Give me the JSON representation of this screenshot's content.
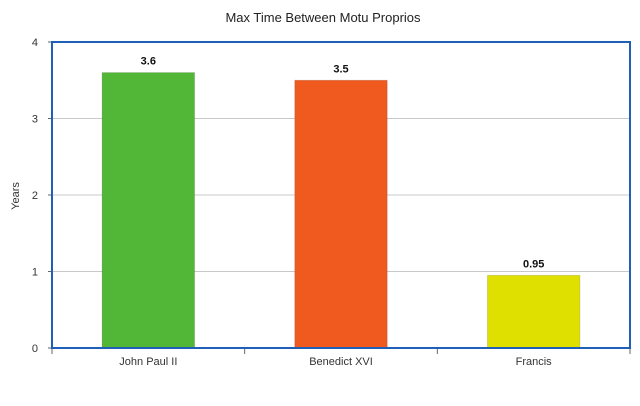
{
  "chart_data": {
    "type": "bar",
    "title": "Max Time Between Motu Proprios",
    "xlabel": "",
    "ylabel": "Years",
    "ylim": [
      0,
      4
    ],
    "yticks": [
      0,
      1,
      2,
      3,
      4
    ],
    "grid": true,
    "categories": [
      "John Paul II",
      "Benedict XVI",
      "Francis"
    ],
    "values": [
      3.6,
      3.5,
      0.95
    ],
    "data_labels": [
      "3.6",
      "3.5",
      "0.95"
    ],
    "colors": [
      "#52b636",
      "#f05a1e",
      "#dfe000"
    ],
    "frame_color": "#1f5fb8",
    "grid_color": "#c8c8c8"
  }
}
